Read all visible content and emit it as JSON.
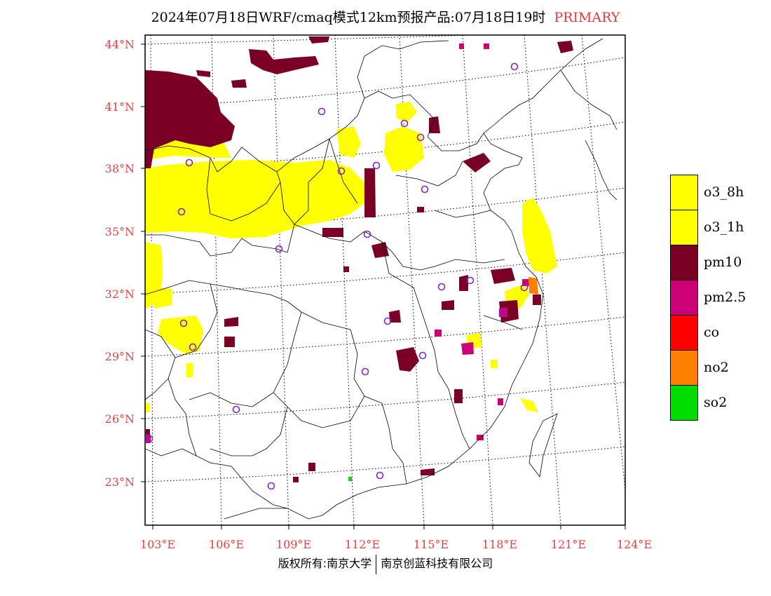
{
  "title": {
    "main": "2024年07月18日WRF/cmaq模式12km预报产品:07月18日19时",
    "tag": "PRIMARY"
  },
  "lat_labels": [
    "44°N",
    "41°N",
    "38°N",
    "35°N",
    "32°N",
    "29°N",
    "26°N",
    "23°N"
  ],
  "lon_labels": [
    "103°E",
    "106°E",
    "109°E",
    "112°E",
    "115°E",
    "118°E",
    "121°E",
    "124°E"
  ],
  "legend": [
    {
      "label": "o3_8h",
      "color": "#ffff00"
    },
    {
      "label": "o3_1h",
      "color": "#ffff00"
    },
    {
      "label": "pm10",
      "color": "#7a0026"
    },
    {
      "label": "pm2.5",
      "color": "#cc0077"
    },
    {
      "label": "co",
      "color": "#ff0000"
    },
    {
      "label": "no2",
      "color": "#ff7f00"
    },
    {
      "label": "so2",
      "color": "#00dd00"
    }
  ],
  "footer": {
    "left": "版权所有:南京大学",
    "right": "南京创蓝科技有限公司"
  }
}
